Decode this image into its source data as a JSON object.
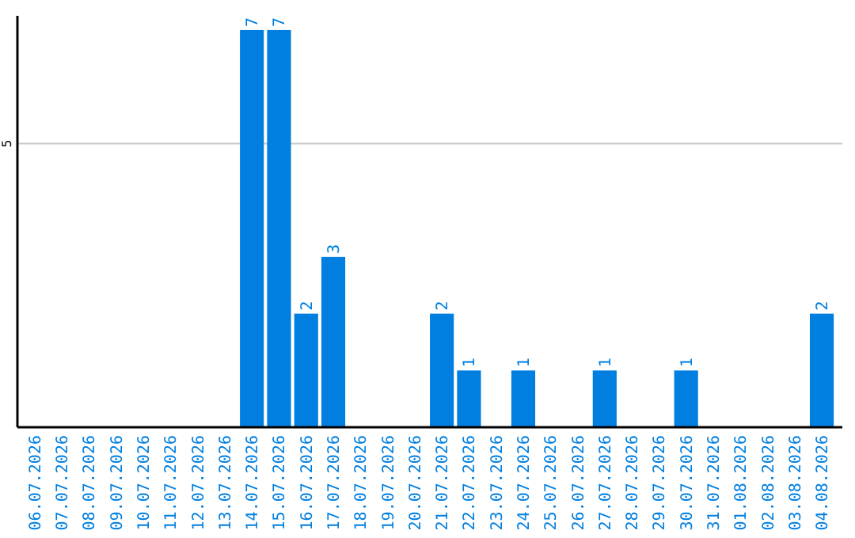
{
  "chart_data": {
    "type": "bar",
    "categories": [
      "06.07.2026",
      "07.07.2026",
      "08.07.2026",
      "09.07.2026",
      "10.07.2026",
      "11.07.2026",
      "12.07.2026",
      "13.07.2026",
      "14.07.2026",
      "15.07.2026",
      "16.07.2026",
      "17.07.2026",
      "18.07.2026",
      "19.07.2026",
      "20.07.2026",
      "21.07.2026",
      "22.07.2026",
      "23.07.2026",
      "24.07.2026",
      "25.07.2026",
      "26.07.2026",
      "27.07.2026",
      "28.07.2026",
      "29.07.2026",
      "30.07.2026",
      "31.07.2026",
      "01.08.2026",
      "02.08.2026",
      "03.08.2026",
      "04.08.2026"
    ],
    "values": [
      0,
      0,
      0,
      0,
      0,
      0,
      0,
      0,
      7,
      7,
      2,
      3,
      0,
      0,
      0,
      2,
      1,
      0,
      1,
      0,
      0,
      1,
      0,
      0,
      1,
      0,
      0,
      0,
      0,
      2
    ],
    "value_labels": [
      null,
      null,
      null,
      null,
      null,
      null,
      null,
      null,
      "7",
      "7",
      "2",
      "3",
      null,
      null,
      null,
      "2",
      "1",
      null,
      "1",
      null,
      null,
      "1",
      null,
      null,
      "1",
      null,
      null,
      null,
      null,
      "2"
    ],
    "color": "#007fe0",
    "ylim": [
      0,
      7.25
    ],
    "yticks": [
      5
    ],
    "grid": "y"
  }
}
